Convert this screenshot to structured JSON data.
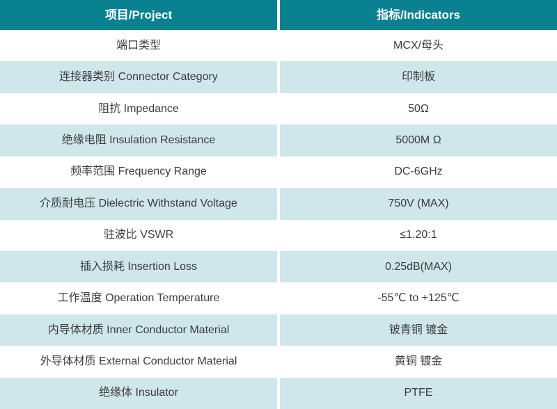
{
  "colors": {
    "header_bg": "#0a8191",
    "header_text": "#ffffff",
    "row_bg": "#ffffff",
    "alt_row_bg": "#cfe6ea",
    "text": "#3c3c3c"
  },
  "table": {
    "columns": [
      {
        "label": "项目/Project"
      },
      {
        "label": "指标/Indicators"
      }
    ],
    "rows": [
      {
        "project": "端口类型",
        "indicator": "MCX/母头"
      },
      {
        "project": "连接器类别 Connector Category",
        "indicator": "印制板"
      },
      {
        "project": "阻抗 Impedance",
        "indicator": "50Ω"
      },
      {
        "project": "绝缘电阻 Insulation Resistance",
        "indicator": "5000M Ω"
      },
      {
        "project": "频率范围 Frequency Range",
        "indicator": "DC-6GHz"
      },
      {
        "project": "介质耐电压 Dielectric Withstand Voltage",
        "indicator": "750V (MAX)"
      },
      {
        "project": "驻波比 VSWR",
        "indicator": "≤1.20:1"
      },
      {
        "project": "插入损耗 Insertion Loss",
        "indicator": "0.25dB(MAX)"
      },
      {
        "project": "工作温度 Operation Temperature",
        "indicator": "-55℃ to +125℃"
      },
      {
        "project": "内导体材质 Inner Conductor Material",
        "indicator": "铍青铜 镀金"
      },
      {
        "project": "外导体材质 External Conductor Material",
        "indicator": "黄铜 镀金"
      },
      {
        "project": "绝缘体 Insulator",
        "indicator": "PTFE"
      }
    ]
  }
}
